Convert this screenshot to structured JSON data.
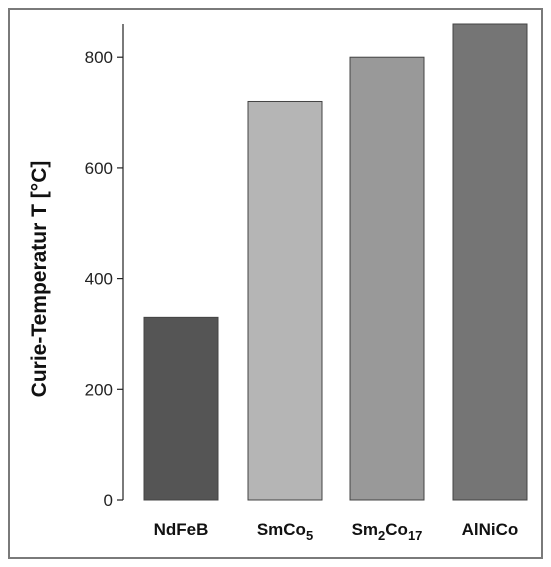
{
  "chart_data": {
    "type": "bar",
    "categories": [
      "NdFeB",
      "SmCo5",
      "Sm2Co17",
      "AlNiCo"
    ],
    "category_labels": [
      [
        {
          "text": "NdFeB",
          "sub": false
        }
      ],
      [
        {
          "text": "SmCo",
          "sub": false
        },
        {
          "text": "5",
          "sub": true
        }
      ],
      [
        {
          "text": "Sm",
          "sub": false
        },
        {
          "text": "2",
          "sub": true
        },
        {
          "text": "Co",
          "sub": false
        },
        {
          "text": "17",
          "sub": true
        }
      ],
      [
        {
          "text": "AlNiCo",
          "sub": false
        }
      ]
    ],
    "values": [
      330,
      720,
      800,
      860
    ],
    "colors": [
      "#555555",
      "#b5b5b5",
      "#999999",
      "#757575"
    ],
    "ylabel": "Curie-Temperatur  T  [°C]",
    "xlabel": "",
    "title": "",
    "ylim": [
      0,
      860
    ],
    "yticks": [
      0,
      200,
      400,
      600,
      800
    ],
    "grid": false
  },
  "theme": {
    "frame_color": "#7a7a7a",
    "axis_color": "#222222",
    "bar_edge_color": "#444444"
  }
}
